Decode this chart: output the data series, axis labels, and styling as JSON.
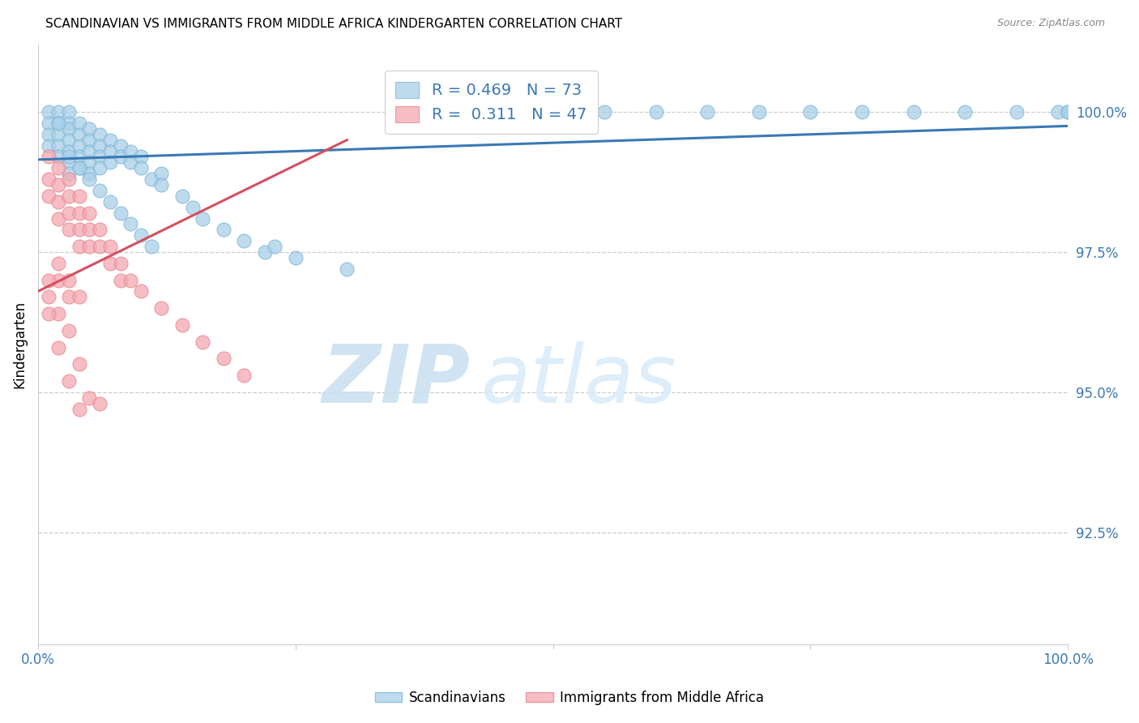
{
  "title": "SCANDINAVIAN VS IMMIGRANTS FROM MIDDLE AFRICA KINDERGARTEN CORRELATION CHART",
  "source": "Source: ZipAtlas.com",
  "ylabel": "Kindergarten",
  "y_tick_labels": [
    "92.5%",
    "95.0%",
    "97.5%",
    "100.0%"
  ],
  "y_tick_values": [
    92.5,
    95.0,
    97.5,
    100.0
  ],
  "xlim": [
    0,
    100
  ],
  "ylim": [
    90.5,
    101.2
  ],
  "blue_R": 0.469,
  "blue_N": 73,
  "pink_R": 0.311,
  "pink_N": 47,
  "blue_color": "#a8cfe8",
  "pink_color": "#f4a8b0",
  "blue_edge_color": "#7ab3d4",
  "pink_edge_color": "#e8808a",
  "blue_line_color": "#3a78b5",
  "pink_line_color": "#d45060",
  "legend_blue_label": "Scandinavians",
  "legend_pink_label": "Immigrants from Middle Africa",
  "watermark_zip": "ZIP",
  "watermark_atlas": "atlas",
  "blue_line_x0": 0,
  "blue_line_y0": 99.15,
  "blue_line_x1": 100,
  "blue_line_y1": 99.75,
  "pink_line_x0": 0,
  "pink_line_y0": 96.8,
  "pink_line_x1": 30,
  "pink_line_y1": 99.5,
  "blue_x": [
    1,
    1,
    1,
    1,
    2,
    2,
    2,
    2,
    2,
    3,
    3,
    3,
    3,
    3,
    3,
    3,
    4,
    4,
    4,
    4,
    4,
    5,
    5,
    5,
    5,
    5,
    6,
    6,
    6,
    6,
    7,
    7,
    7,
    8,
    8,
    9,
    9,
    10,
    10,
    11,
    12,
    12,
    14,
    15,
    16,
    18,
    20,
    22,
    23,
    25,
    30,
    55,
    60,
    65,
    70,
    75,
    80,
    85,
    90,
    95,
    99,
    100,
    100,
    2,
    3,
    4,
    5,
    6,
    7,
    8,
    9,
    10,
    11
  ],
  "blue_y": [
    100,
    99.8,
    99.6,
    99.4,
    100,
    99.8,
    99.6,
    99.4,
    99.2,
    100,
    99.8,
    99.7,
    99.5,
    99.3,
    99.1,
    98.9,
    99.8,
    99.6,
    99.4,
    99.2,
    99.0,
    99.7,
    99.5,
    99.3,
    99.1,
    98.9,
    99.6,
    99.4,
    99.2,
    99.0,
    99.5,
    99.3,
    99.1,
    99.4,
    99.2,
    99.3,
    99.1,
    99.2,
    99.0,
    98.8,
    98.9,
    98.7,
    98.5,
    98.3,
    98.1,
    97.9,
    97.7,
    97.5,
    97.6,
    97.4,
    97.2,
    100,
    100,
    100,
    100,
    100,
    100,
    100,
    100,
    100,
    100,
    100,
    100,
    99.8,
    99.2,
    99.0,
    98.8,
    98.6,
    98.4,
    98.2,
    98.0,
    97.8,
    97.6
  ],
  "pink_x": [
    1,
    1,
    1,
    2,
    2,
    2,
    2,
    3,
    3,
    3,
    3,
    4,
    4,
    4,
    4,
    5,
    5,
    5,
    6,
    6,
    7,
    7,
    8,
    8,
    9,
    10,
    12,
    14,
    16,
    18,
    20,
    2,
    2,
    3,
    3,
    4,
    1,
    1,
    2,
    1,
    3,
    2,
    4,
    3,
    5,
    4,
    6
  ],
  "pink_y": [
    99.2,
    98.8,
    98.5,
    99.0,
    98.7,
    98.4,
    98.1,
    98.8,
    98.5,
    98.2,
    97.9,
    98.5,
    98.2,
    97.9,
    97.6,
    98.2,
    97.9,
    97.6,
    97.9,
    97.6,
    97.6,
    97.3,
    97.3,
    97.0,
    97.0,
    96.8,
    96.5,
    96.2,
    95.9,
    95.6,
    95.3,
    97.3,
    97.0,
    97.0,
    96.7,
    96.7,
    97.0,
    96.7,
    96.4,
    96.4,
    96.1,
    95.8,
    95.5,
    95.2,
    94.9,
    94.7,
    94.8
  ]
}
